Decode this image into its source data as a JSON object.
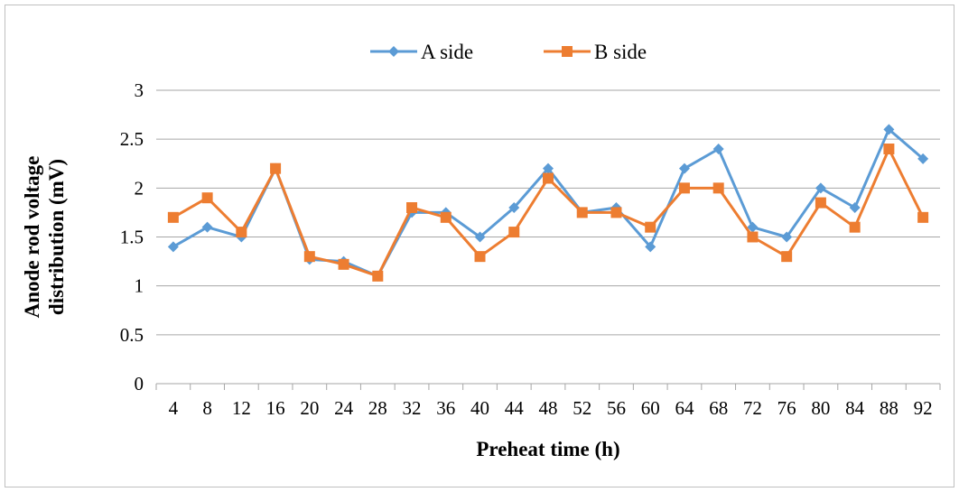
{
  "chart_data": {
    "type": "line",
    "xlabel": "Preheat time (h)",
    "ylabel_lines": [
      "Anode rod voltage",
      "distribution (mV)"
    ],
    "ylim": [
      0,
      3
    ],
    "yticks": [
      0,
      0.5,
      1,
      1.5,
      2,
      2.5,
      3
    ],
    "ytick_labels": [
      "0",
      "0.5",
      "1",
      "1.5",
      "2",
      "2.5",
      "3"
    ],
    "grid": true,
    "legend_position": "top",
    "categories": [
      "4",
      "8",
      "12",
      "16",
      "20",
      "24",
      "28",
      "32",
      "36",
      "40",
      "44",
      "48",
      "52",
      "56",
      "60",
      "64",
      "68",
      "72",
      "76",
      "80",
      "84",
      "88",
      "92"
    ],
    "series": [
      {
        "name": "A side",
        "color": "#5B9BD5",
        "marker": "diamond",
        "values": [
          1.4,
          1.6,
          1.5,
          2.2,
          1.27,
          1.25,
          1.1,
          1.75,
          1.75,
          1.5,
          1.8,
          2.2,
          1.75,
          1.8,
          1.4,
          2.2,
          2.4,
          1.6,
          1.5,
          2.0,
          1.8,
          2.6,
          2.3
        ]
      },
      {
        "name": "B side",
        "color": "#ED7D31",
        "marker": "square",
        "values": [
          1.7,
          1.9,
          1.55,
          2.2,
          1.3,
          1.22,
          1.1,
          1.8,
          1.7,
          1.3,
          1.55,
          2.1,
          1.75,
          1.75,
          1.6,
          2.0,
          2.0,
          1.5,
          1.3,
          1.85,
          1.6,
          2.4,
          1.7
        ]
      }
    ]
  }
}
